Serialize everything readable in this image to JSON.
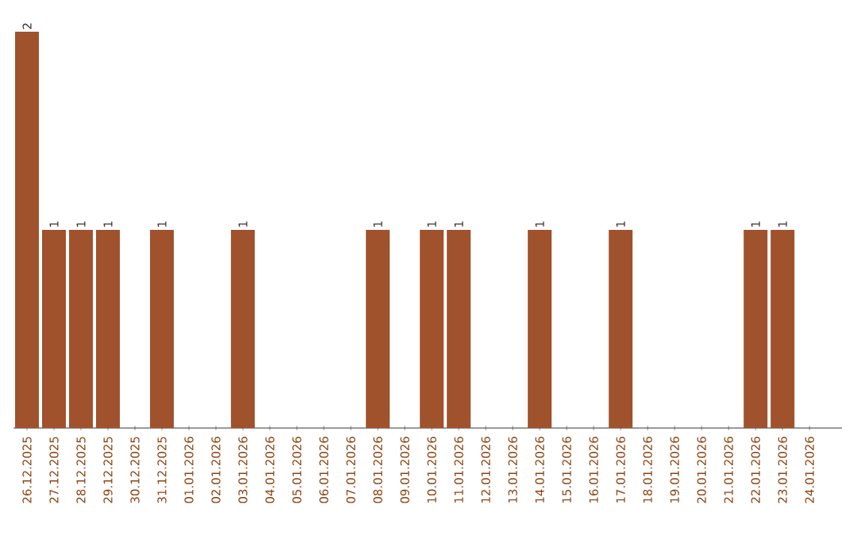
{
  "chart_data": {
    "type": "bar",
    "categories": [
      "26.12.2025",
      "27.12.2025",
      "28.12.2025",
      "29.12.2025",
      "30.12.2025",
      "31.12.2025",
      "01.01.2026",
      "02.01.2026",
      "03.01.2026",
      "04.01.2026",
      "05.01.2026",
      "06.01.2026",
      "07.01.2026",
      "08.01.2026",
      "09.01.2026",
      "10.01.2026",
      "11.01.2026",
      "12.01.2026",
      "13.01.2026",
      "14.01.2026",
      "15.01.2026",
      "16.01.2026",
      "17.01.2026",
      "18.01.2026",
      "19.01.2026",
      "20.01.2026",
      "21.01.2026",
      "22.01.2026",
      "23.01.2026",
      "24.01.2026"
    ],
    "values": [
      2,
      1,
      1,
      1,
      0,
      1,
      0,
      0,
      1,
      0,
      0,
      0,
      0,
      1,
      0,
      1,
      1,
      0,
      0,
      1,
      0,
      0,
      1,
      0,
      0,
      0,
      0,
      1,
      1,
      0
    ],
    "value_labels": [
      "2",
      "1",
      "1",
      "1",
      null,
      "1",
      null,
      null,
      "1",
      null,
      null,
      null,
      null,
      "1",
      null,
      "1",
      "1",
      null,
      null,
      "1",
      null,
      null,
      "1",
      null,
      null,
      null,
      null,
      "1",
      "1",
      null
    ],
    "color": "#a0522d"
  }
}
